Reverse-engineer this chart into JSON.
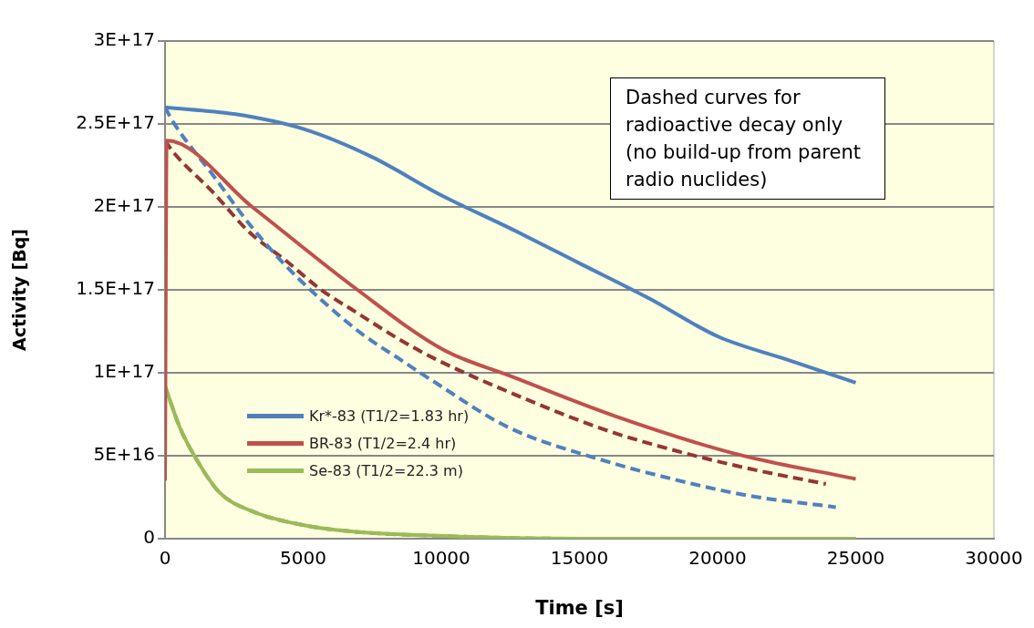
{
  "chart_data": {
    "type": "line",
    "xlabel": "Time [s]",
    "ylabel": "Activity [Bq]",
    "xlim": [
      0,
      30000
    ],
    "xticks": [
      0,
      5000,
      10000,
      15000,
      20000,
      25000,
      30000
    ],
    "ylim": [
      0,
      3e+17
    ],
    "yticks": [
      0,
      {
        "value": 5e+16,
        "label": "5E+16"
      },
      {
        "value": 1e+17,
        "label": "1E+17"
      },
      {
        "value": 1.5e+17,
        "label": "1.5E+17"
      },
      {
        "value": 2e+17,
        "label": "2E+17"
      },
      {
        "value": 2.5e+17,
        "label": "2.5E+17"
      },
      {
        "value": 3e+17,
        "label": "3E+17"
      }
    ],
    "grid": "y",
    "legend": "bottom left",
    "marker": "none",
    "annotations": [
      "Dashed curves for radioactive decay only (no build-up from parent radio nuclides)"
    ],
    "series": [
      {
        "name": "Kr*-83 (T1/2=1.83 hr)",
        "color": "#4f81bd",
        "line_style": "solid",
        "x": [
          0,
          2500,
          5000,
          7500,
          10000,
          12500,
          15000,
          17500,
          20000,
          22500,
          25000
        ],
        "values": [
          2.6e+17,
          2.56e+17,
          2.47e+17,
          2.3e+17,
          2.07e+17,
          1.87e+17,
          1.66e+17,
          1.45e+17,
          1.22e+17,
          1.08e+17,
          9.4e+16
        ]
      },
      {
        "name": "BR-83 (T1/2=2.4 hr)",
        "color": "#c0504d",
        "line_style": "solid",
        "x": [
          0,
          60,
          3155,
          6965,
          10060,
          12510,
          16270,
          20680,
          25000
        ],
        "values": [
          3.5e+16,
          2.4e+17,
          2e+17,
          1.5e+17,
          1.14e+17,
          9.8e+16,
          7.4e+16,
          5.1e+16,
          3.6e+16
        ]
      },
      {
        "name": "Se-83 (T1/2=22.3 m)",
        "color": "#9bbb59",
        "line_style": "solid",
        "x": [
          0,
          536,
          1131,
          1964,
          3155,
          4940,
          6726,
          10060,
          15000,
          20000,
          25000
        ],
        "values": [
          9.2e+16,
          6.7e+16,
          4.8e+16,
          2.8e+16,
          1.65e+16,
          8400000000000000.0,
          4400000000000000.0,
          1600000000000000.0,
          0,
          0,
          0
        ]
      },
      {
        "color": "#4f81bd",
        "line_style": "dashed",
        "x": [
          0,
          300,
          1786,
          3036,
          4345,
          5655,
          7083,
          8512,
          9700,
          12440,
          15700,
          18360,
          21100,
          24280
        ],
        "values": [
          2.6e+17,
          2.51e+17,
          2.18e+17,
          1.9e+17,
          1.65e+17,
          1.44e+17,
          1.24e+17,
          1.08e+17,
          9.5e+16,
          6.7e+16,
          4.8e+16,
          3.6e+16,
          2.6e+16,
          1.9e+16
        ]
      },
      {
        "color": "#943634",
        "line_style": "dashed",
        "x": [
          0,
          300,
          1726,
          3036,
          4345,
          5655,
          6964,
          8393,
          9702,
          12083,
          15860,
          18490,
          21200,
          23920
        ],
        "values": [
          2.4e+17,
          2.33e+17,
          2.09e+17,
          1.85e+17,
          1.68e+17,
          1.5e+17,
          1.36e+17,
          1.21e+17,
          1.09e+17,
          9.1e+16,
          6.6e+16,
          5.3e+16,
          4.2e+16,
          3.3e+16
        ]
      },
      {
        "color": "#77933c",
        "line_style": "dashed",
        "x": [
          0,
          536,
          1131,
          1964,
          3155,
          4940,
          6726,
          10060,
          15000,
          20000,
          25000
        ],
        "values": [
          9.2e+16,
          6.7e+16,
          4.8e+16,
          2.8e+16,
          1.65e+16,
          8400000000000000.0,
          4400000000000000.0,
          1600000000000000.0,
          0,
          0,
          0
        ]
      }
    ]
  }
}
